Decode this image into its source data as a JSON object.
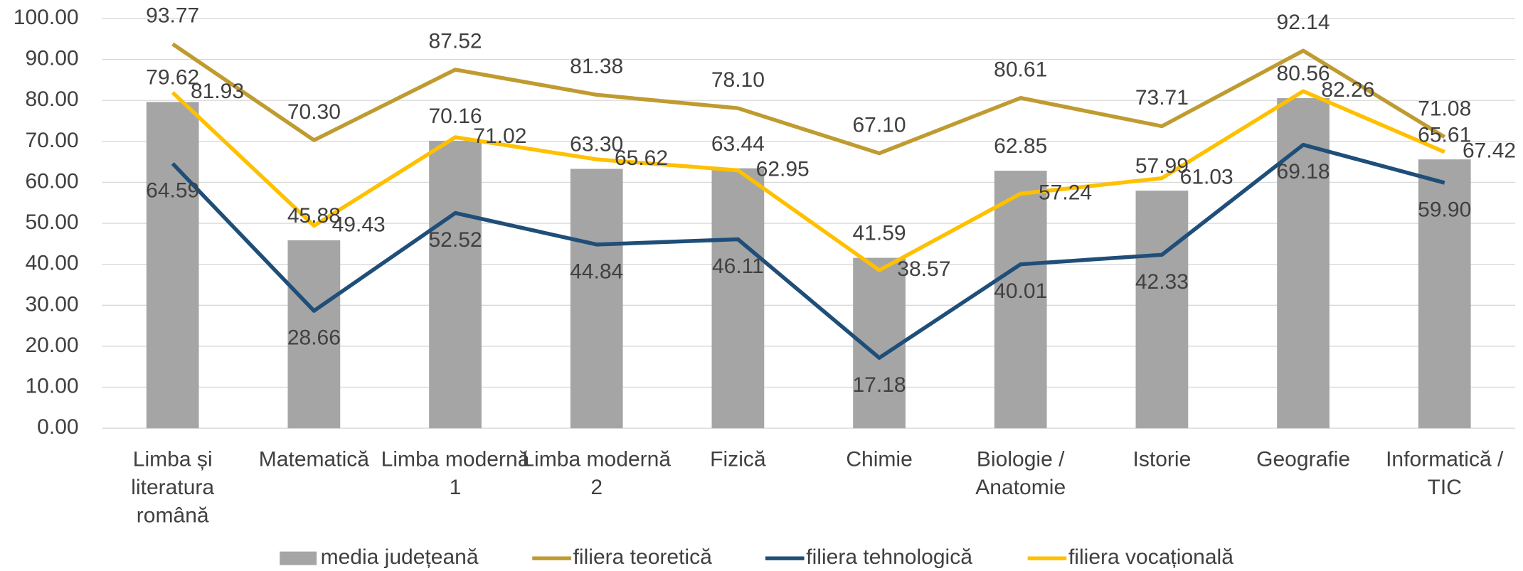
{
  "chart_data": {
    "type": "bar",
    "categories": [
      "Limba și literatura română",
      "Matematică",
      "Limba modernă 1",
      "Limba modernă 2",
      "Fizică",
      "Chimie",
      "Biologie / Anatomie",
      "Istorie",
      "Geografie",
      "Informatică / TIC"
    ],
    "series": [
      {
        "name": "media județeană",
        "type": "bar",
        "color": "#a5a5a5",
        "values": [
          79.62,
          45.88,
          70.16,
          63.3,
          63.44,
          41.59,
          62.85,
          57.99,
          80.56,
          65.61
        ],
        "value_labels": [
          "79.62",
          "45.88",
          "70.16",
          "63.30",
          "63.44",
          "41.59",
          "62.85",
          "57.99",
          "80.56",
          "65.61"
        ]
      },
      {
        "name": "filiera teoretică",
        "type": "line",
        "color": "#bf9b30",
        "values": [
          93.77,
          70.3,
          87.52,
          81.38,
          78.1,
          67.1,
          80.61,
          73.71,
          92.14,
          71.08
        ],
        "value_labels": [
          "93.77",
          "70.30",
          "87.52",
          "81.38",
          "78.10",
          "67.10",
          "80.61",
          "73.71",
          "92.14",
          "71.08"
        ]
      },
      {
        "name": "filiera tehnologică",
        "type": "line",
        "color": "#1f4e79",
        "values": [
          64.59,
          28.66,
          52.52,
          44.84,
          46.11,
          17.18,
          40.01,
          42.33,
          69.18,
          59.9
        ],
        "value_labels": [
          "64.59",
          "28.66",
          "52.52",
          "44.84",
          "46.11",
          "17.18",
          "40.01",
          "42.33",
          "69.18",
          "59.90"
        ]
      },
      {
        "name": "filiera vocațională",
        "type": "line",
        "color": "#ffc000",
        "values": [
          81.93,
          49.43,
          71.02,
          65.62,
          62.95,
          38.57,
          57.24,
          61.03,
          82.26,
          67.42
        ],
        "value_labels": [
          "81.93",
          "49.43",
          "71.02",
          "65.62",
          "62.95",
          "38.57",
          "57.24",
          "61.03",
          "82.26",
          "67.42"
        ]
      }
    ],
    "ylim": [
      0,
      100
    ],
    "yticks": [
      {
        "value": 0,
        "label": "0.00"
      },
      {
        "value": 10,
        "label": "10.00"
      },
      {
        "value": 20,
        "label": "20.00"
      },
      {
        "value": 30,
        "label": "30.00"
      },
      {
        "value": 40,
        "label": "40.00"
      },
      {
        "value": 50,
        "label": "50.00"
      },
      {
        "value": 60,
        "label": "60.00"
      },
      {
        "value": 70,
        "label": "70.00"
      },
      {
        "value": 80,
        "label": "80.00"
      },
      {
        "value": 90,
        "label": "90.00"
      },
      {
        "value": {
          "value": 100,
          "label": "100.00"
        },
        "label": "100.00"
      }
    ],
    "grid": true,
    "legend": "bottom"
  }
}
